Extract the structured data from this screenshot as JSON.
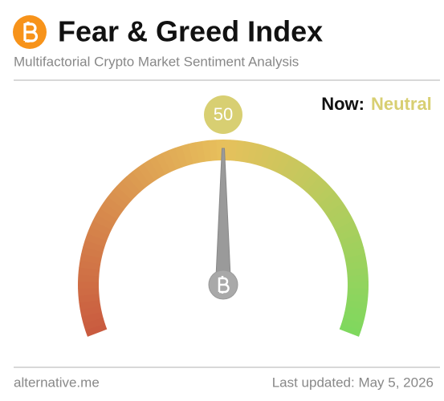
{
  "chart_data": {
    "type": "gauge",
    "title": "Fear & Greed Index",
    "subtitle": "Multifactorial Crypto Market Sentiment Analysis",
    "value": 50,
    "ylim": [
      0,
      100
    ],
    "now_label": "Now:",
    "classification": "Neutral",
    "classification_color": "#d8cf72",
    "colors": [
      "#c95a3f",
      "#e7c05c",
      "#7ed85e"
    ],
    "source": "alternative.me",
    "updated": "Last updated: May 5, 2026"
  }
}
